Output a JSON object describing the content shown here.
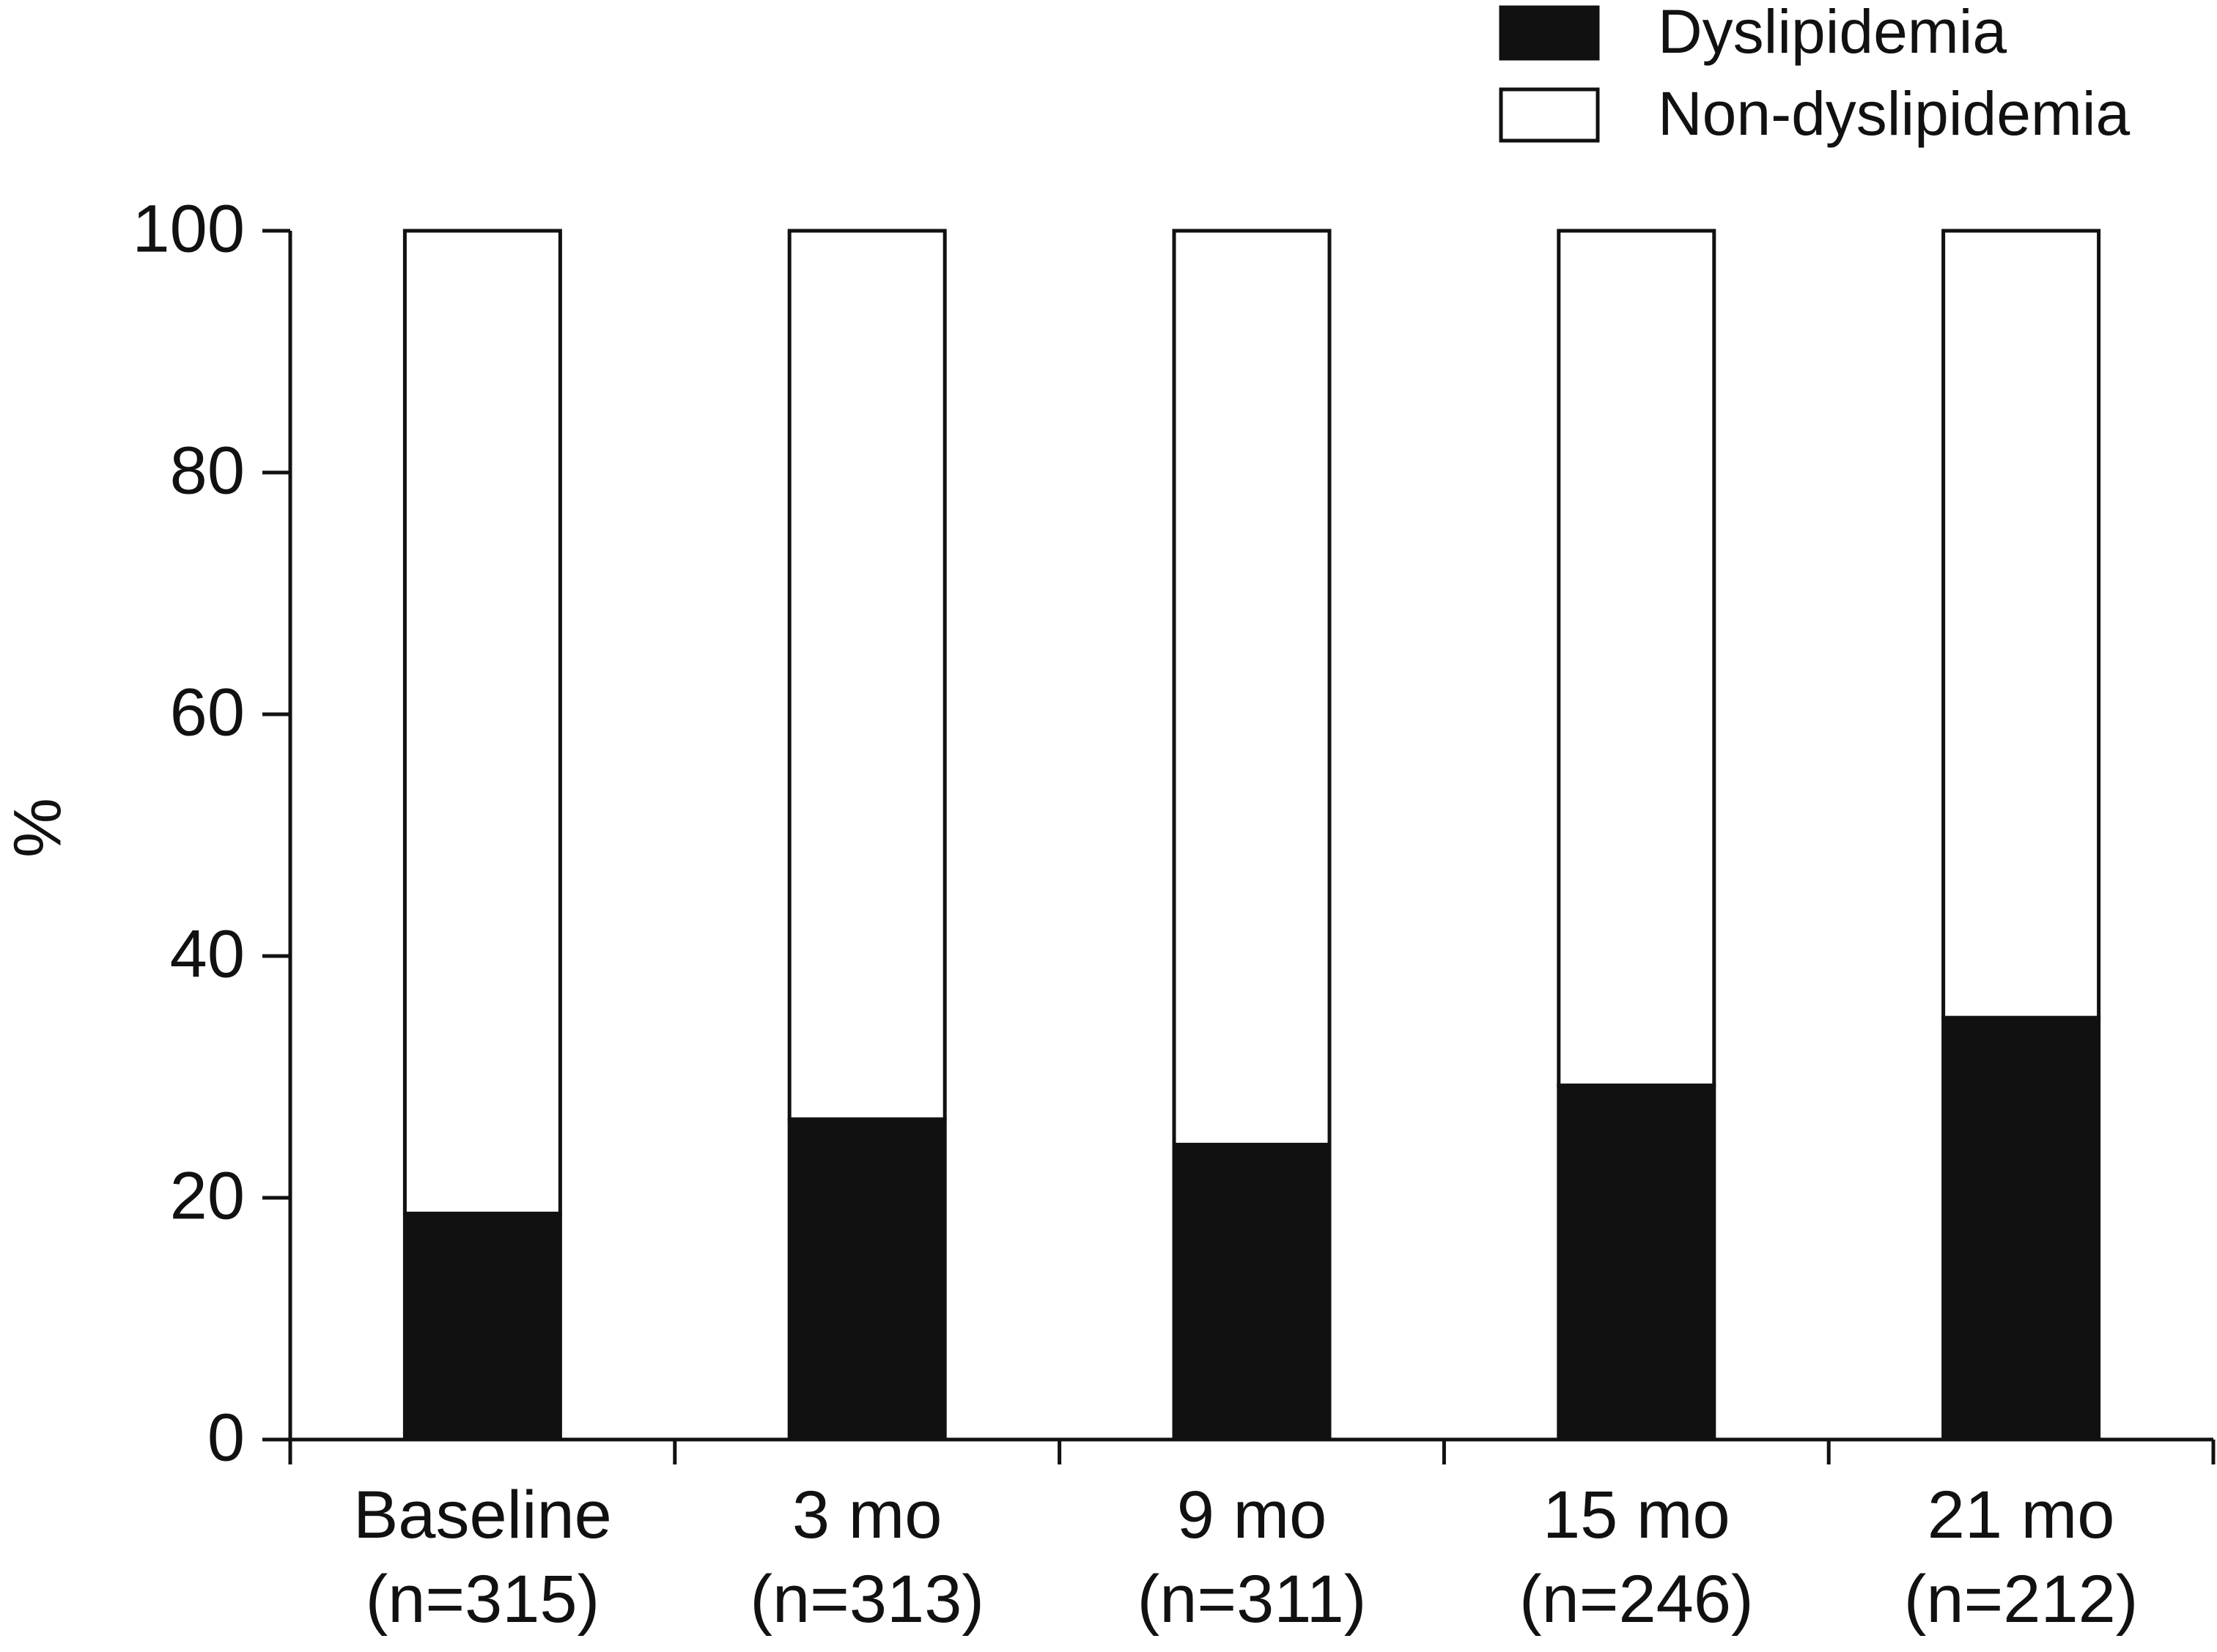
{
  "chart_data": {
    "type": "stacked_bar",
    "categories": [
      "Baseline\n(n=315)",
      "3 mo\n(n=313)",
      "9 mo\n(n=311)",
      "15 mo\n(n=246)",
      "21 mo\n(n=212)"
    ],
    "series": [
      {
        "name": "Dyslipidemia",
        "color": "#111111",
        "values": [
          18.7,
          26.5,
          24.4,
          29.3,
          34.9
        ]
      },
      {
        "name": "Non-dyslipidemia",
        "color": "#ffffff",
        "values": [
          81.3,
          73.5,
          75.6,
          70.7,
          65.1
        ]
      }
    ],
    "y_label": "%",
    "ylim": [
      0,
      100
    ],
    "yticks": [
      0,
      20,
      40,
      60,
      80,
      100
    ],
    "grid": false,
    "legend": "top-right"
  }
}
